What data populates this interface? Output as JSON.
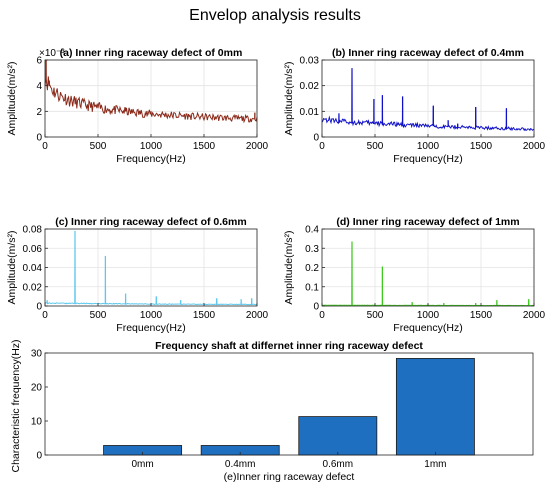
{
  "figure": {
    "title": "Envelop analysis results"
  },
  "chart_data": [
    {
      "type": "line",
      "title": "(a) Inner ring raceway defect of 0mm",
      "xlabel": "Frequency(Hz)",
      "ylabel": "Amplitude(m/s²)",
      "y_exponent": "×10⁻³",
      "xlim": [
        0,
        2000
      ],
      "ylim": [
        0,
        6
      ],
      "xticks": [
        0,
        500,
        1000,
        1500,
        2000
      ],
      "yticks": [
        0,
        2,
        4,
        6
      ],
      "grid": true,
      "color": "#8b2a1a",
      "envelope": [
        [
          0,
          4.8
        ],
        [
          30,
          4.2
        ],
        [
          80,
          3.6
        ],
        [
          150,
          3.2
        ],
        [
          250,
          2.8
        ],
        [
          400,
          2.45
        ],
        [
          600,
          2.15
        ],
        [
          800,
          1.95
        ],
        [
          1000,
          1.8
        ],
        [
          1200,
          1.7
        ],
        [
          1400,
          1.6
        ],
        [
          1600,
          1.52
        ],
        [
          1800,
          1.45
        ],
        [
          2000,
          1.4
        ]
      ],
      "peaks": [
        [
          10,
          6.0
        ],
        [
          40,
          4.4
        ],
        [
          760,
          2.3
        ],
        [
          1000,
          2.0
        ],
        [
          1980,
          1.9
        ]
      ]
    },
    {
      "type": "line",
      "title": "(b) Inner ring raceway defect of 0.4mm",
      "xlabel": "Frequency(Hz)",
      "ylabel": "Amplitude(m/s²)",
      "xlim": [
        0,
        2000
      ],
      "ylim": [
        0,
        0.03
      ],
      "xticks": [
        0,
        500,
        1000,
        1500,
        2000
      ],
      "yticks": [
        0,
        0.01,
        0.02,
        0.03
      ],
      "grid": true,
      "color": "#1010c8",
      "envelope": [
        [
          0,
          0.007
        ],
        [
          200,
          0.006
        ],
        [
          500,
          0.0053
        ],
        [
          1000,
          0.0043
        ],
        [
          1500,
          0.0036
        ],
        [
          2000,
          0.003
        ]
      ],
      "peaks": [
        [
          160,
          0.0092
        ],
        [
          283,
          0.0268
        ],
        [
          490,
          0.0148
        ],
        [
          570,
          0.0163
        ],
        [
          760,
          0.0158
        ],
        [
          1050,
          0.0122
        ],
        [
          1190,
          0.0065
        ],
        [
          1280,
          0.0052
        ],
        [
          1450,
          0.0117
        ],
        [
          1740,
          0.0112
        ]
      ]
    },
    {
      "type": "line",
      "title": "(c) Inner ring raceway defect of 0.6mm",
      "xlabel": "Frequency(Hz)",
      "ylabel": "Amplitude(m/s²)",
      "xlim": [
        0,
        2000
      ],
      "ylim": [
        0,
        0.08
      ],
      "xticks": [
        0,
        500,
        1000,
        1500,
        2000
      ],
      "yticks": [
        0,
        0.02,
        0.04,
        0.06,
        0.08
      ],
      "grid": true,
      "color": "#5cc8ee",
      "envelope": [
        [
          0,
          0.003
        ],
        [
          500,
          0.0025
        ],
        [
          1000,
          0.002
        ],
        [
          1500,
          0.0018
        ],
        [
          2000,
          0.0016
        ]
      ],
      "peaks": [
        [
          20,
          0.006
        ],
        [
          283,
          0.078
        ],
        [
          570,
          0.052
        ],
        [
          760,
          0.013
        ],
        [
          1050,
          0.01
        ],
        [
          1280,
          0.006
        ],
        [
          1620,
          0.008
        ],
        [
          1850,
          0.007
        ],
        [
          1950,
          0.008
        ]
      ]
    },
    {
      "type": "line",
      "title": "(d) Inner ring raceway defect of 1mm",
      "xlabel": "Frequency(Hz)",
      "ylabel": "Amplitude(m/s²)",
      "xlim": [
        0,
        2000
      ],
      "ylim": [
        0,
        0.4
      ],
      "xticks": [
        0,
        500,
        1000,
        1500,
        2000
      ],
      "yticks": [
        0,
        0.1,
        0.2,
        0.3,
        0.4
      ],
      "grid": true,
      "color": "#3ec91e",
      "envelope": [
        [
          0,
          0.004
        ],
        [
          1000,
          0.003
        ],
        [
          2000,
          0.0025
        ]
      ],
      "peaks": [
        [
          283,
          0.335
        ],
        [
          570,
          0.205
        ],
        [
          850,
          0.02
        ],
        [
          1150,
          0.015
        ],
        [
          1450,
          0.015
        ],
        [
          1650,
          0.03
        ],
        [
          1950,
          0.035
        ]
      ]
    },
    {
      "type": "bar",
      "title": "Frequency shaft at differnet inner ring raceway defect",
      "xlabel": "(e)Inner ring raceway defect",
      "ylabel": "Characteristic frequency(Hz)",
      "categories": [
        "0mm",
        "0.4mm",
        "0.6mm",
        "1mm"
      ],
      "values": [
        2.8,
        2.8,
        11.3,
        28.4
      ],
      "ylim": [
        0,
        30
      ],
      "yticks": [
        0,
        10,
        20,
        30
      ],
      "grid": false,
      "color": "#1f6fc0"
    }
  ]
}
